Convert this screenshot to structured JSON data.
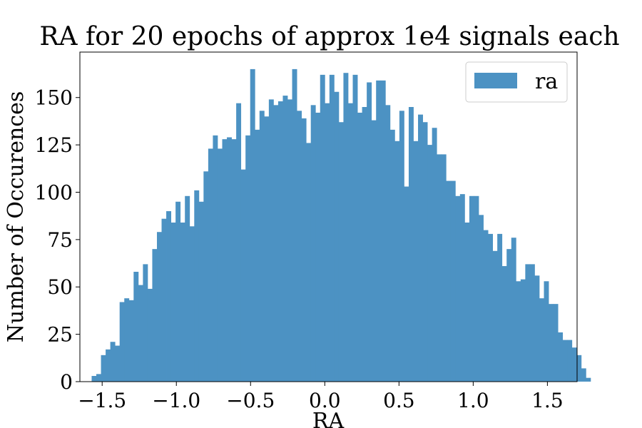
{
  "chart_data": {
    "type": "bar",
    "title": "RA for 20 epochs of approx 1e4 signals each",
    "xlabel": "RA",
    "ylabel": "Number of Occurences",
    "xlim": [
      -1.65,
      1.7
    ],
    "ylim": [
      0,
      174
    ],
    "bin_start": -1.5708,
    "bin_width": 0.031416,
    "x_ticks": [
      -1.5,
      -1.0,
      -0.5,
      0.0,
      0.5,
      1.0,
      1.5
    ],
    "x_tick_labels": [
      "−1.5",
      "−1.0",
      "−0.5",
      "0.0",
      "0.5",
      "1.0",
      "1.5"
    ],
    "y_ticks": [
      0,
      25,
      50,
      75,
      100,
      125,
      150
    ],
    "y_tick_labels": [
      "0",
      "25",
      "50",
      "75",
      "100",
      "125",
      "150"
    ],
    "grid": false,
    "legend": {
      "position": "top-right"
    },
    "series": [
      {
        "name": "ra",
        "color": "#4c92c3",
        "values": [
          3,
          4,
          14,
          17,
          21,
          19,
          42,
          44,
          43,
          58,
          51,
          62,
          49,
          70,
          79,
          86,
          90,
          84,
          95,
          84,
          98,
          82,
          101,
          95,
          111,
          123,
          130,
          123,
          128,
          129,
          128,
          147,
          112,
          130,
          165,
          133,
          143,
          140,
          149,
          146,
          148,
          151,
          149,
          165,
          143,
          139,
          126,
          146,
          142,
          162,
          147,
          162,
          153,
          137,
          163,
          147,
          162,
          142,
          145,
          158,
          138,
          159,
          159,
          146,
          133,
          127,
          143,
          103,
          145,
          127,
          141,
          137,
          125,
          134,
          120,
          120,
          106,
          106,
          98,
          99,
          84,
          98,
          98,
          88,
          80,
          78,
          69,
          78,
          61,
          70,
          76,
          53,
          54,
          62,
          62,
          56,
          44,
          53,
          41,
          41,
          26,
          22,
          22,
          18,
          14,
          7,
          2
        ]
      }
    ]
  }
}
